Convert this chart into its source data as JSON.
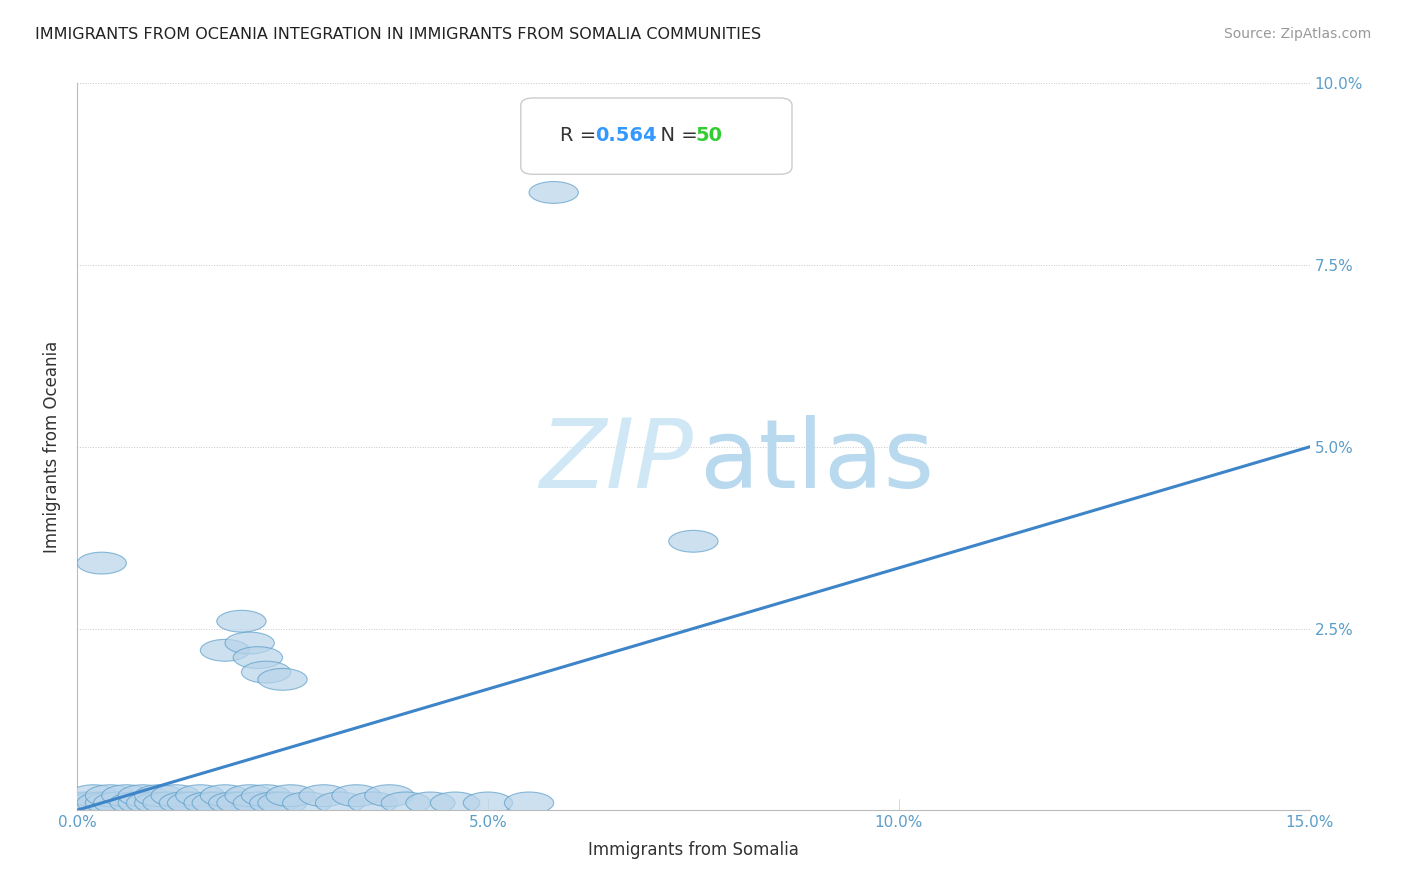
{
  "title": "IMMIGRANTS FROM OCEANIA INTEGRATION IN IMMIGRANTS FROM SOMALIA COMMUNITIES",
  "source": "Source: ZipAtlas.com",
  "xlabel": "Immigrants from Somalia",
  "ylabel": "Immigrants from Oceania",
  "R": 0.564,
  "N": 50,
  "xlim": [
    0,
    0.15
  ],
  "ylim": [
    0,
    0.1
  ],
  "xticks": [
    0.0,
    0.05,
    0.1,
    0.15
  ],
  "xtick_labels": [
    "0.0%",
    "5.0%",
    "10.0%",
    "15.0%"
  ],
  "ytick_labels_right": [
    "2.5%",
    "5.0%",
    "7.5%",
    "10.0%"
  ],
  "yticks_right": [
    0.025,
    0.05,
    0.075,
    0.1
  ],
  "scatter_color": "#b8d4ea",
  "scatter_edgecolor": "#5b9ec9",
  "line_color": "#3d85c8",
  "background_color": "#ffffff",
  "grid_color": "#c8c8c8",
  "title_color": "#222222",
  "source_color": "#999999",
  "axis_label_color": "#333333",
  "tick_color": "#5b9ec9",
  "stat_text_color": "#333333",
  "stat_num_color": "#3399ff",
  "stat_N_color": "#33cc33",
  "watermark_zip_color": "#d0e8f5",
  "watermark_atlas_color": "#b8d9ee",
  "points": [
    [
      0.001,
      0.001
    ],
    [
      0.002,
      0.001
    ],
    [
      0.002,
      0.002
    ],
    [
      0.003,
      0.001
    ],
    [
      0.004,
      0.001
    ],
    [
      0.004,
      0.002
    ],
    [
      0.005,
      0.001
    ],
    [
      0.006,
      0.002
    ],
    [
      0.007,
      0.001
    ],
    [
      0.008,
      0.001
    ],
    [
      0.008,
      0.002
    ],
    [
      0.009,
      0.001
    ],
    [
      0.01,
      0.001
    ],
    [
      0.01,
      0.002
    ],
    [
      0.011,
      0.001
    ],
    [
      0.012,
      0.002
    ],
    [
      0.013,
      0.001
    ],
    [
      0.014,
      0.001
    ],
    [
      0.015,
      0.002
    ],
    [
      0.016,
      0.001
    ],
    [
      0.017,
      0.001
    ],
    [
      0.018,
      0.002
    ],
    [
      0.019,
      0.001
    ],
    [
      0.02,
      0.001
    ],
    [
      0.021,
      0.002
    ],
    [
      0.022,
      0.001
    ],
    [
      0.023,
      0.002
    ],
    [
      0.024,
      0.001
    ],
    [
      0.025,
      0.001
    ],
    [
      0.026,
      0.002
    ],
    [
      0.028,
      0.001
    ],
    [
      0.03,
      0.002
    ],
    [
      0.032,
      0.001
    ],
    [
      0.034,
      0.002
    ],
    [
      0.036,
      0.001
    ],
    [
      0.038,
      0.002
    ],
    [
      0.04,
      0.001
    ],
    [
      0.043,
      0.001
    ],
    [
      0.046,
      0.001
    ],
    [
      0.05,
      0.001
    ],
    [
      0.055,
      0.001
    ],
    [
      0.003,
      0.034
    ],
    [
      0.018,
      0.022
    ],
    [
      0.02,
      0.026
    ],
    [
      0.021,
      0.023
    ],
    [
      0.022,
      0.021
    ],
    [
      0.023,
      0.019
    ],
    [
      0.025,
      0.018
    ],
    [
      0.058,
      0.085
    ],
    [
      0.075,
      0.037
    ]
  ],
  "line_x": [
    0.0,
    0.15
  ],
  "line_y": [
    0.0,
    0.05
  ]
}
